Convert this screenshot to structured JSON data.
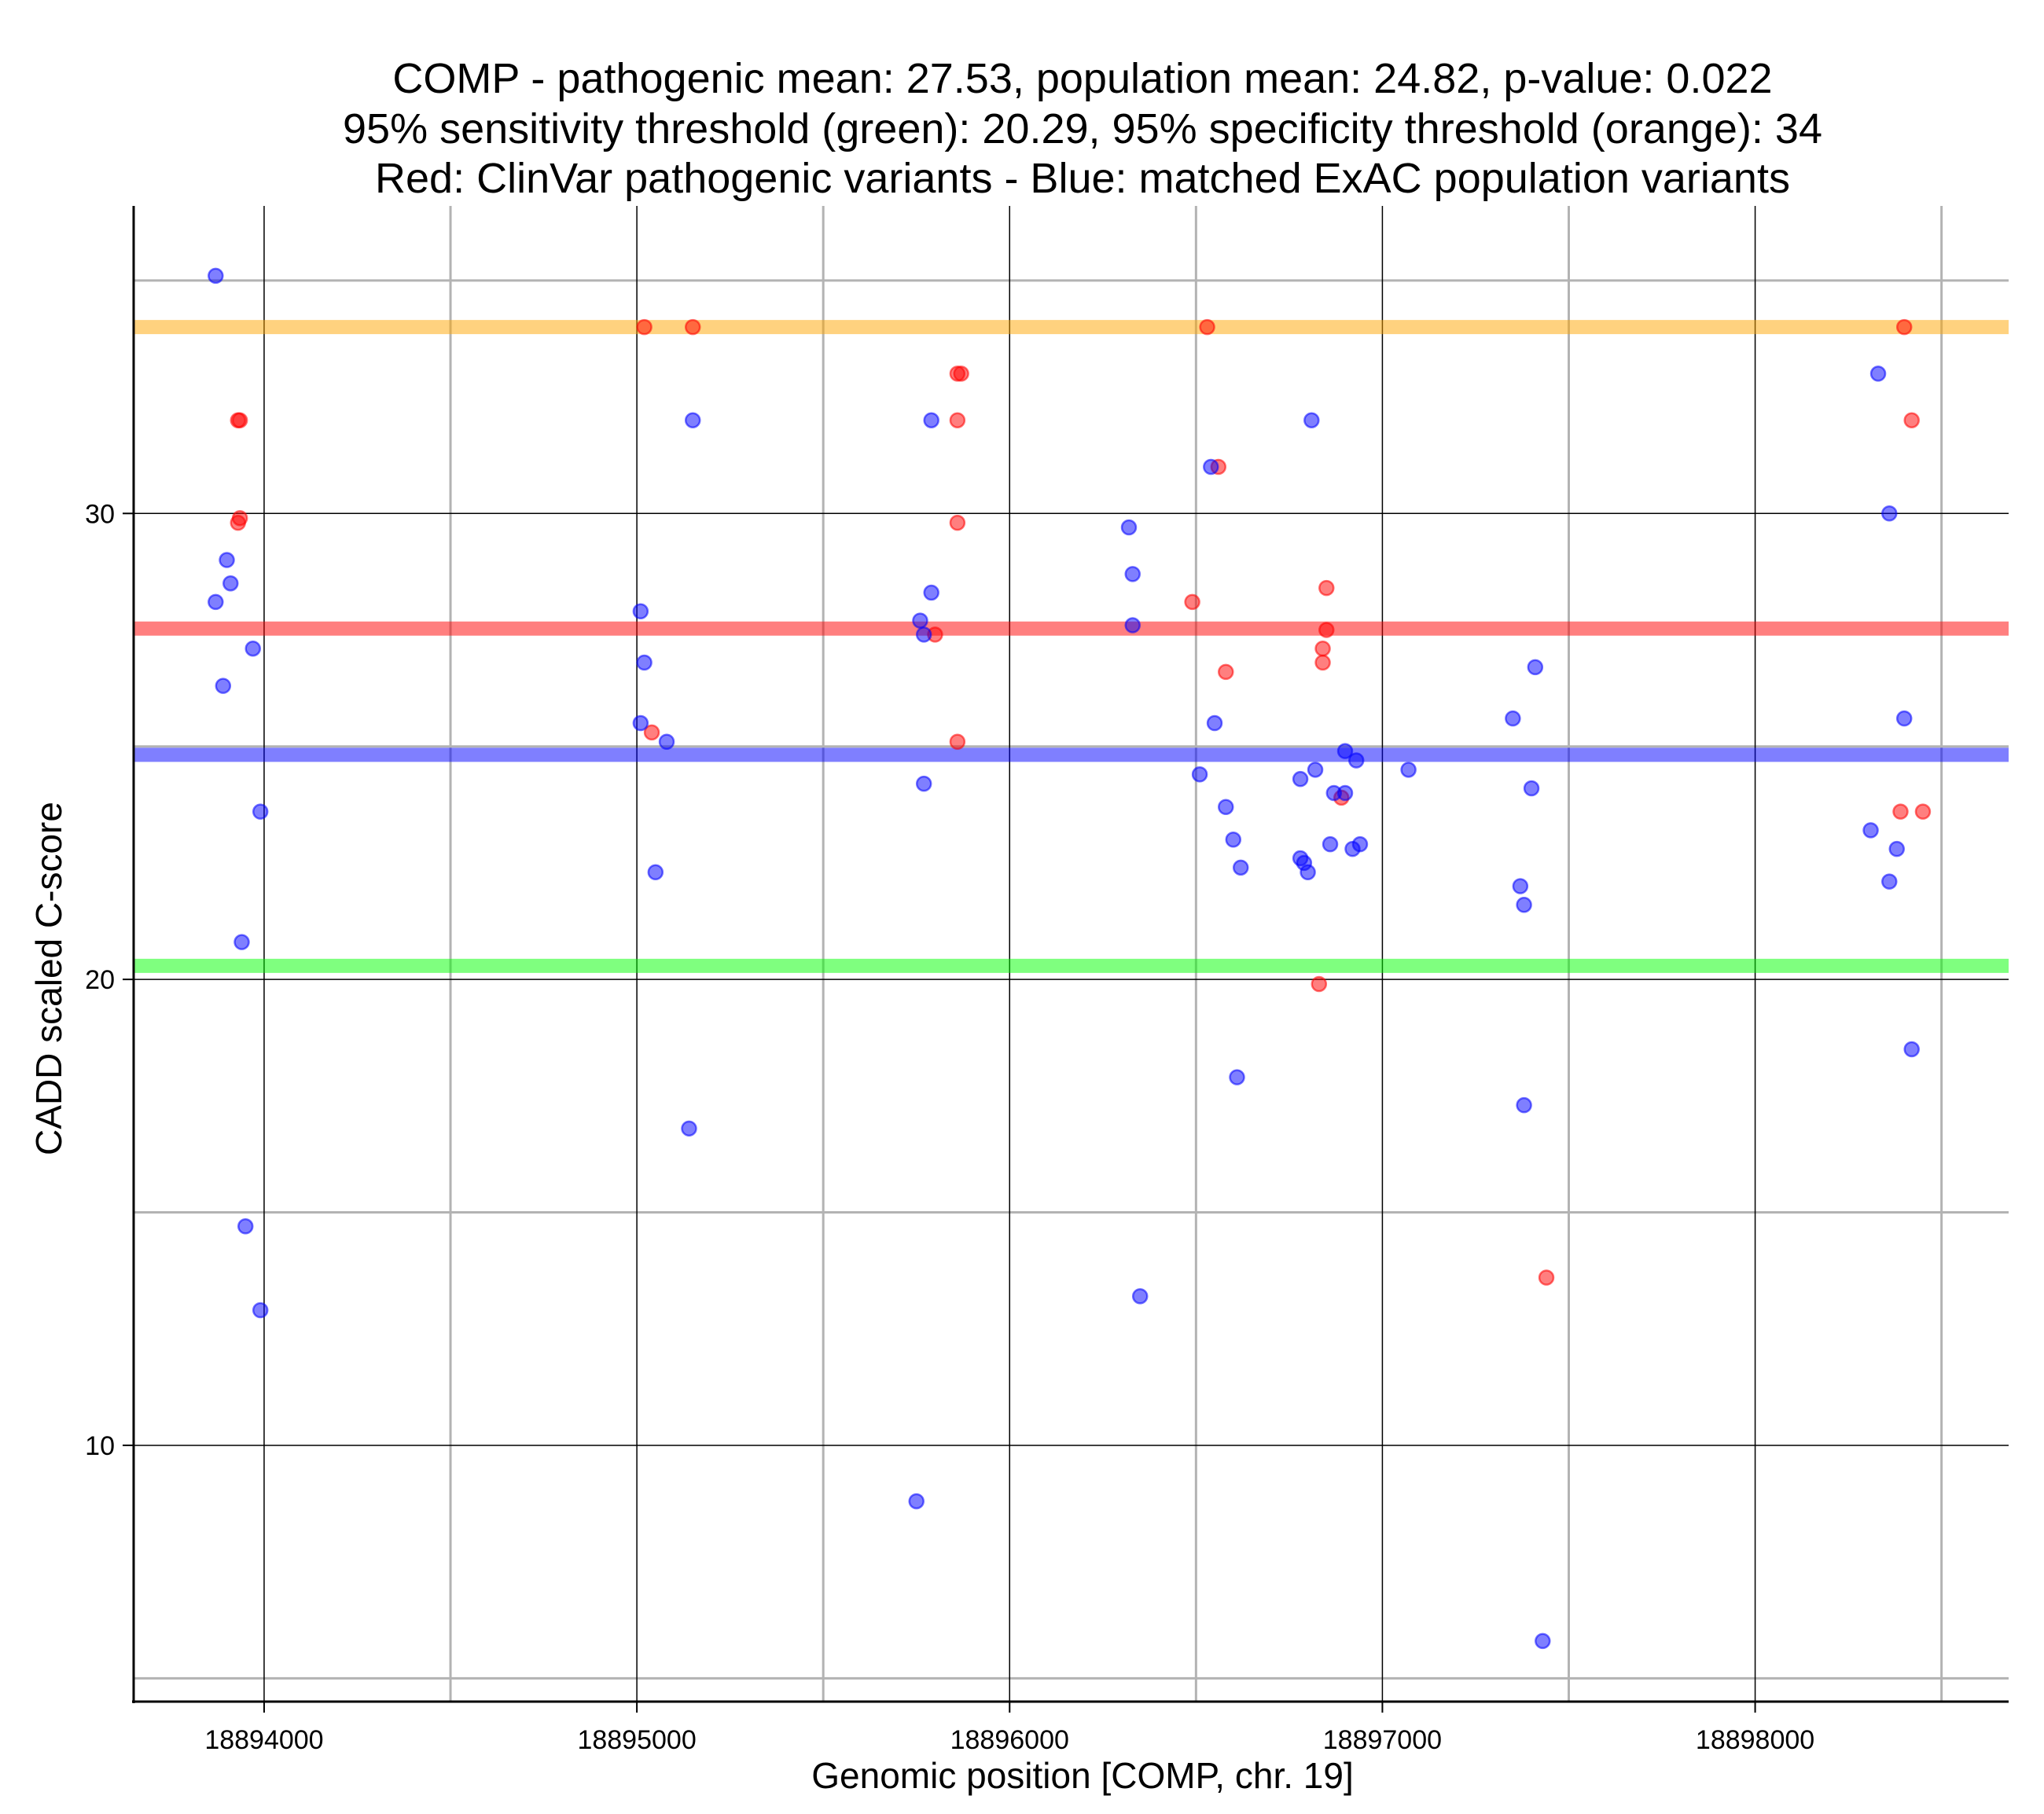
{
  "chart_data": {
    "type": "scatter",
    "title": [
      "COMP - pathogenic mean: 27.53, population mean: 24.82, p-value: 0.022",
      "95% sensitivity threshold (green): 20.29, 95% specificity threshold (orange): 34",
      "Red: ClinVar pathogenic variants - Blue: matched ExAC population variants"
    ],
    "xlabel": "Genomic position [COMP, chr. 19]",
    "ylabel": "CADD scaled C-score",
    "xlim": [
      18893650,
      18898680
    ],
    "ylim": [
      4.5,
      36.6
    ],
    "x_major_ticks": [
      18894000,
      18895000,
      18896000,
      18897000,
      18898000
    ],
    "x_major_tick_labels": [
      "18894000",
      "18895000",
      "18896000",
      "18897000",
      "18898000"
    ],
    "x_minor_grid": [
      18894500,
      18895500,
      18896500,
      18897500,
      18898500
    ],
    "y_major_ticks": [
      10,
      20,
      30
    ],
    "y_major_tick_labels": [
      "10",
      "20",
      "30"
    ],
    "y_minor_grid": [
      5,
      15,
      25,
      35
    ],
    "grid": true,
    "reference_lines": [
      {
        "name": "95% specificity threshold",
        "value": 34,
        "color": "#ffa500"
      },
      {
        "name": "pathogenic mean",
        "value": 27.53,
        "color": "#ff0000"
      },
      {
        "name": "population mean",
        "value": 24.82,
        "color": "#0000ff"
      },
      {
        "name": "95% sensitivity threshold",
        "value": 20.29,
        "color": "#00ff00"
      }
    ],
    "series": [
      {
        "name": "ClinVar pathogenic variants",
        "color": "#ff0000",
        "points": [
          [
            18893930,
            32
          ],
          [
            18893935,
            32
          ],
          [
            18893930,
            29.8
          ],
          [
            18893935,
            29.9
          ],
          [
            18895020,
            34
          ],
          [
            18895150,
            34
          ],
          [
            18895040,
            25.3
          ],
          [
            18895860,
            33
          ],
          [
            18895870,
            33
          ],
          [
            18895860,
            32
          ],
          [
            18895860,
            29.8
          ],
          [
            18895800,
            27.4
          ],
          [
            18895860,
            25.1
          ],
          [
            18896490,
            28.1
          ],
          [
            18896530,
            34
          ],
          [
            18896560,
            31
          ],
          [
            18896580,
            26.6
          ],
          [
            18896840,
            27.1
          ],
          [
            18896840,
            26.8
          ],
          [
            18896850,
            28.4
          ],
          [
            18896850,
            27.5
          ],
          [
            18896890,
            23.9
          ],
          [
            18896830,
            19.9
          ],
          [
            18897440,
            13.6
          ],
          [
            18898400,
            34
          ],
          [
            18898420,
            32
          ],
          [
            18898390,
            23.6
          ],
          [
            18898450,
            23.6
          ]
        ]
      },
      {
        "name": "matched ExAC population variants",
        "color": "#0000ff",
        "points": [
          [
            18893870,
            35.1
          ],
          [
            18893900,
            29
          ],
          [
            18893910,
            28.5
          ],
          [
            18893870,
            28.1
          ],
          [
            18893890,
            26.3
          ],
          [
            18893970,
            27.1
          ],
          [
            18893990,
            23.6
          ],
          [
            18893940,
            20.8
          ],
          [
            18893950,
            14.7
          ],
          [
            18893990,
            12.9
          ],
          [
            18895010,
            27.9
          ],
          [
            18895020,
            26.8
          ],
          [
            18895010,
            25.5
          ],
          [
            18895080,
            25.1
          ],
          [
            18895050,
            22.3
          ],
          [
            18895150,
            32
          ],
          [
            18895140,
            16.8
          ],
          [
            18895790,
            32
          ],
          [
            18895790,
            28.3
          ],
          [
            18895760,
            27.7
          ],
          [
            18895770,
            27.4
          ],
          [
            18895770,
            24.2
          ],
          [
            18895750,
            8.8
          ],
          [
            18896320,
            29.7
          ],
          [
            18896330,
            28.7
          ],
          [
            18896330,
            27.6
          ],
          [
            18896350,
            13.2
          ],
          [
            18896540,
            31
          ],
          [
            18896550,
            25.5
          ],
          [
            18896510,
            24.4
          ],
          [
            18896580,
            23.7
          ],
          [
            18896600,
            23
          ],
          [
            18896620,
            22.4
          ],
          [
            18896610,
            17.9
          ],
          [
            18896810,
            32
          ],
          [
            18896820,
            24.5
          ],
          [
            18896780,
            24.3
          ],
          [
            18896870,
            24
          ],
          [
            18896900,
            24
          ],
          [
            18896900,
            24.9
          ],
          [
            18896930,
            24.7
          ],
          [
            18896860,
            22.9
          ],
          [
            18896940,
            22.9
          ],
          [
            18896920,
            22.8
          ],
          [
            18896780,
            22.6
          ],
          [
            18896790,
            22.5
          ],
          [
            18896800,
            22.3
          ],
          [
            18897070,
            24.5
          ],
          [
            18897350,
            25.6
          ],
          [
            18897410,
            26.7
          ],
          [
            18897400,
            24.1
          ],
          [
            18897370,
            22
          ],
          [
            18897380,
            21.6
          ],
          [
            18897380,
            17.3
          ],
          [
            18897430,
            5.8
          ],
          [
            18898330,
            33
          ],
          [
            18898360,
            30
          ],
          [
            18898400,
            25.6
          ],
          [
            18898310,
            23.2
          ],
          [
            18898380,
            22.8
          ],
          [
            18898360,
            22.1
          ],
          [
            18898420,
            18.5
          ]
        ]
      }
    ]
  }
}
